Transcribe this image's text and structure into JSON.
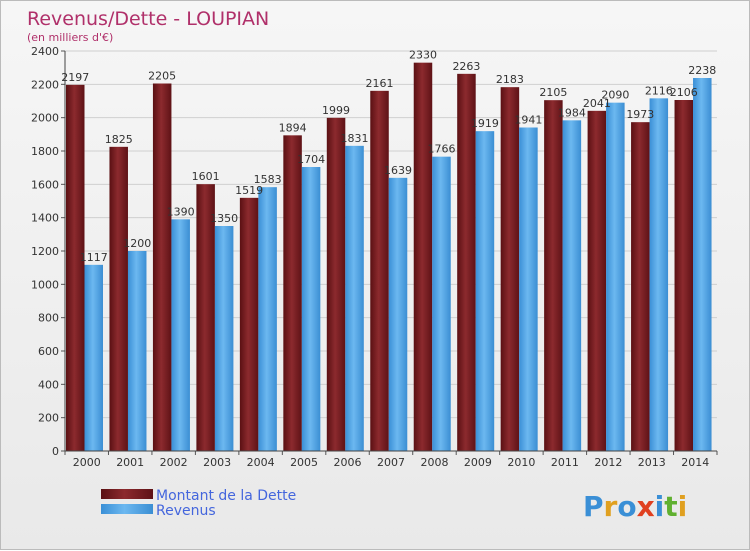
{
  "chart_data": {
    "type": "bar",
    "title": "Revenus/Dette - LOUPIAN",
    "subtitle": "(en milliers d'€)",
    "categories": [
      "2000",
      "2001",
      "2002",
      "2003",
      "2004",
      "2005",
      "2006",
      "2007",
      "2008",
      "2009",
      "2010",
      "2011",
      "2012",
      "2013",
      "2014"
    ],
    "series": [
      {
        "name": "Montant de la Dette",
        "color": "#7a1f22",
        "values": [
          2197,
          1825,
          2205,
          1601,
          1519,
          1894,
          1999,
          2161,
          2330,
          2263,
          2183,
          2105,
          2041,
          1973,
          2106
        ]
      },
      {
        "name": "Revenus",
        "color": "#4aa3e6",
        "values": [
          1117,
          1200,
          1390,
          1350,
          1583,
          1704,
          1831,
          1639,
          1766,
          1919,
          1941,
          1984,
          2090,
          2116,
          2238
        ]
      }
    ],
    "ylim": [
      0,
      2400
    ],
    "yticks": [
      0,
      200,
      400,
      600,
      800,
      1000,
      1200,
      1400,
      1600,
      1800,
      2000,
      2200,
      2400
    ],
    "grid": true,
    "legend_position": "bottom-left"
  },
  "brand": {
    "logo_text": "Proxiti"
  }
}
